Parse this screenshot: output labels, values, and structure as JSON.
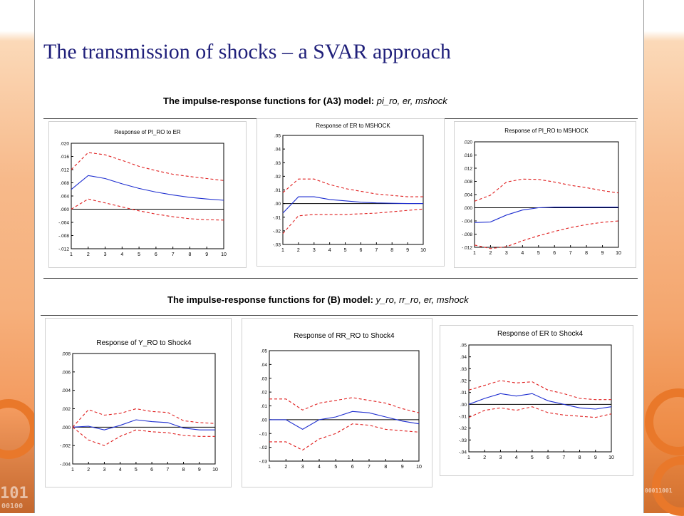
{
  "slide_title": "The transmission of shocks – a SVAR approach",
  "section_a": {
    "prefix": "The impulse-response functions for (A3) model: ",
    "vars": "pi_ro, er, mshock"
  },
  "section_b": {
    "prefix": "The impulse-response functions for (B) model: ",
    "vars": "y_ro, rr_ro, er, mshock"
  },
  "colors": {
    "response": "#1f2fd0",
    "bands": "#e02020",
    "title": "#1f1f7a",
    "accent": "#e9782a"
  },
  "decoration_text": {
    "left": "101",
    "left_small": "00100",
    "right_small": "00011001"
  },
  "chart_data": [
    {
      "type": "line",
      "title": "Response of PI_RO to ER",
      "x": [
        1,
        2,
        3,
        4,
        5,
        6,
        7,
        8,
        9,
        10
      ],
      "ylim": [
        -0.012,
        0.02
      ],
      "yticks": [
        ".020",
        ".016",
        ".012",
        ".008",
        ".004",
        ".000",
        "-.004",
        "-.008",
        "-.012"
      ],
      "ytick_values": [
        0.02,
        0.016,
        0.012,
        0.008,
        0.004,
        0.0,
        -0.004,
        -0.008,
        -0.012
      ],
      "series": [
        {
          "role": "response",
          "values": [
            0.006,
            0.0102,
            0.0093,
            0.0077,
            0.0063,
            0.0052,
            0.0043,
            0.0036,
            0.0031,
            0.0027
          ]
        },
        {
          "role": "upper",
          "values": [
            0.012,
            0.0172,
            0.0165,
            0.0148,
            0.013,
            0.0117,
            0.0106,
            0.0099,
            0.0093,
            0.0087
          ]
        },
        {
          "role": "lower",
          "values": [
            0.0,
            0.0031,
            0.0019,
            0.0007,
            -0.0005,
            -0.0015,
            -0.0023,
            -0.0029,
            -0.0032,
            -0.0033
          ]
        }
      ]
    },
    {
      "type": "line",
      "title": "Response of ER to MSHOCK",
      "x": [
        1,
        2,
        3,
        4,
        5,
        6,
        7,
        8,
        9,
        10
      ],
      "ylim": [
        -0.03,
        0.05
      ],
      "yticks": [
        ".05",
        ".04",
        ".03",
        ".02",
        ".01",
        ".00",
        "-.01",
        "-.02",
        "-.03"
      ],
      "ytick_values": [
        0.05,
        0.04,
        0.03,
        0.02,
        0.01,
        0.0,
        -0.01,
        -0.02,
        -0.03
      ],
      "series": [
        {
          "role": "response",
          "values": [
            -0.007,
            0.005,
            0.005,
            0.003,
            0.002,
            0.001,
            0.0005,
            0.0002,
            0.0,
            0.0
          ]
        },
        {
          "role": "upper",
          "values": [
            0.008,
            0.018,
            0.018,
            0.014,
            0.011,
            0.009,
            0.007,
            0.006,
            0.005,
            0.005
          ]
        },
        {
          "role": "lower",
          "values": [
            -0.022,
            -0.009,
            -0.008,
            -0.008,
            -0.008,
            -0.0075,
            -0.007,
            -0.006,
            -0.005,
            -0.004
          ]
        }
      ]
    },
    {
      "type": "line",
      "title": "Response of PI_RO to MSHOCK",
      "x": [
        1,
        2,
        3,
        4,
        5,
        6,
        7,
        8,
        9,
        10
      ],
      "ylim": [
        -0.012,
        0.02
      ],
      "yticks": [
        ".020",
        ".016",
        ".012",
        ".008",
        ".004",
        ".000",
        "-.004",
        "-.008",
        "-.012"
      ],
      "ytick_values": [
        0.02,
        0.016,
        0.012,
        0.008,
        0.004,
        0.0,
        -0.004,
        -0.008,
        -0.012
      ],
      "series": [
        {
          "role": "response",
          "values": [
            -0.0045,
            -0.0043,
            -0.0022,
            -0.0007,
            0.0,
            0.0002,
            0.0002,
            0.0002,
            0.0002,
            0.0002
          ]
        },
        {
          "role": "upper",
          "values": [
            0.002,
            0.0038,
            0.0078,
            0.0087,
            0.0086,
            0.0078,
            0.0068,
            0.0061,
            0.0052,
            0.0045
          ]
        },
        {
          "role": "lower",
          "values": [
            -0.0113,
            -0.0124,
            -0.0118,
            -0.01,
            -0.0085,
            -0.0072,
            -0.006,
            -0.0051,
            -0.0044,
            -0.004
          ]
        }
      ]
    },
    {
      "type": "line",
      "title": "Response of Y_RO to Shock4",
      "x": [
        1,
        2,
        3,
        4,
        5,
        6,
        7,
        8,
        9,
        10
      ],
      "ylim": [
        -0.004,
        0.008
      ],
      "yticks": [
        ".008",
        ".006",
        ".004",
        ".002",
        ".000",
        "-.002",
        "-.004"
      ],
      "ytick_values": [
        0.008,
        0.006,
        0.004,
        0.002,
        0.0,
        -0.002,
        -0.004
      ],
      "series": [
        {
          "role": "response",
          "values": [
            0.0,
            0.0001,
            -0.0003,
            0.0002,
            0.0008,
            0.0006,
            0.0005,
            -0.0001,
            -0.0003,
            -0.0003
          ]
        },
        {
          "role": "upper",
          "values": [
            0.0,
            0.0019,
            0.0013,
            0.0015,
            0.002,
            0.0017,
            0.0016,
            0.0007,
            0.0005,
            0.0004
          ]
        },
        {
          "role": "lower",
          "values": [
            0.0,
            -0.0014,
            -0.002,
            -0.001,
            -0.0003,
            -0.0005,
            -0.0006,
            -0.0009,
            -0.001,
            -0.001
          ]
        }
      ]
    },
    {
      "type": "line",
      "title": "Response of RR_RO to Shock4",
      "x": [
        1,
        2,
        3,
        4,
        5,
        6,
        7,
        8,
        9,
        10
      ],
      "ylim": [
        -0.03,
        0.05
      ],
      "yticks": [
        ".05",
        ".04",
        ".03",
        ".02",
        ".01",
        ".00",
        "-.01",
        "-.02",
        "-.03"
      ],
      "ytick_values": [
        0.05,
        0.04,
        0.03,
        0.02,
        0.01,
        0.0,
        -0.01,
        -0.02,
        -0.03
      ],
      "series": [
        {
          "role": "response",
          "values": [
            0.0,
            0.0,
            -0.007,
            0.0,
            0.002,
            0.006,
            0.005,
            0.002,
            -0.001,
            -0.003
          ]
        },
        {
          "role": "upper",
          "values": [
            0.015,
            0.015,
            0.007,
            0.012,
            0.014,
            0.016,
            0.014,
            0.012,
            0.008,
            0.005
          ]
        },
        {
          "role": "lower",
          "values": [
            -0.016,
            -0.016,
            -0.022,
            -0.014,
            -0.01,
            -0.003,
            -0.004,
            -0.007,
            -0.008,
            -0.009
          ]
        }
      ]
    },
    {
      "type": "line",
      "title": "Response of ER to Shock4",
      "x": [
        1,
        2,
        3,
        4,
        5,
        6,
        7,
        8,
        9,
        10
      ],
      "ylim": [
        -0.04,
        0.05
      ],
      "yticks": [
        ".05",
        ".04",
        ".03",
        ".02",
        ".01",
        ".00",
        "-.01",
        "-.02",
        "-.03",
        "-.04"
      ],
      "ytick_values": [
        0.05,
        0.04,
        0.03,
        0.02,
        0.01,
        0.0,
        -0.01,
        -0.02,
        -0.03,
        -0.04
      ],
      "series": [
        {
          "role": "response",
          "values": [
            0.0,
            0.005,
            0.009,
            0.007,
            0.009,
            0.003,
            0.0,
            -0.003,
            -0.004,
            -0.002
          ]
        },
        {
          "role": "upper",
          "values": [
            0.012,
            0.016,
            0.02,
            0.018,
            0.019,
            0.012,
            0.009,
            0.005,
            0.004,
            0.004
          ]
        },
        {
          "role": "lower",
          "values": [
            -0.011,
            -0.005,
            -0.003,
            -0.005,
            -0.002,
            -0.007,
            -0.009,
            -0.01,
            -0.011,
            -0.008
          ]
        }
      ]
    }
  ]
}
